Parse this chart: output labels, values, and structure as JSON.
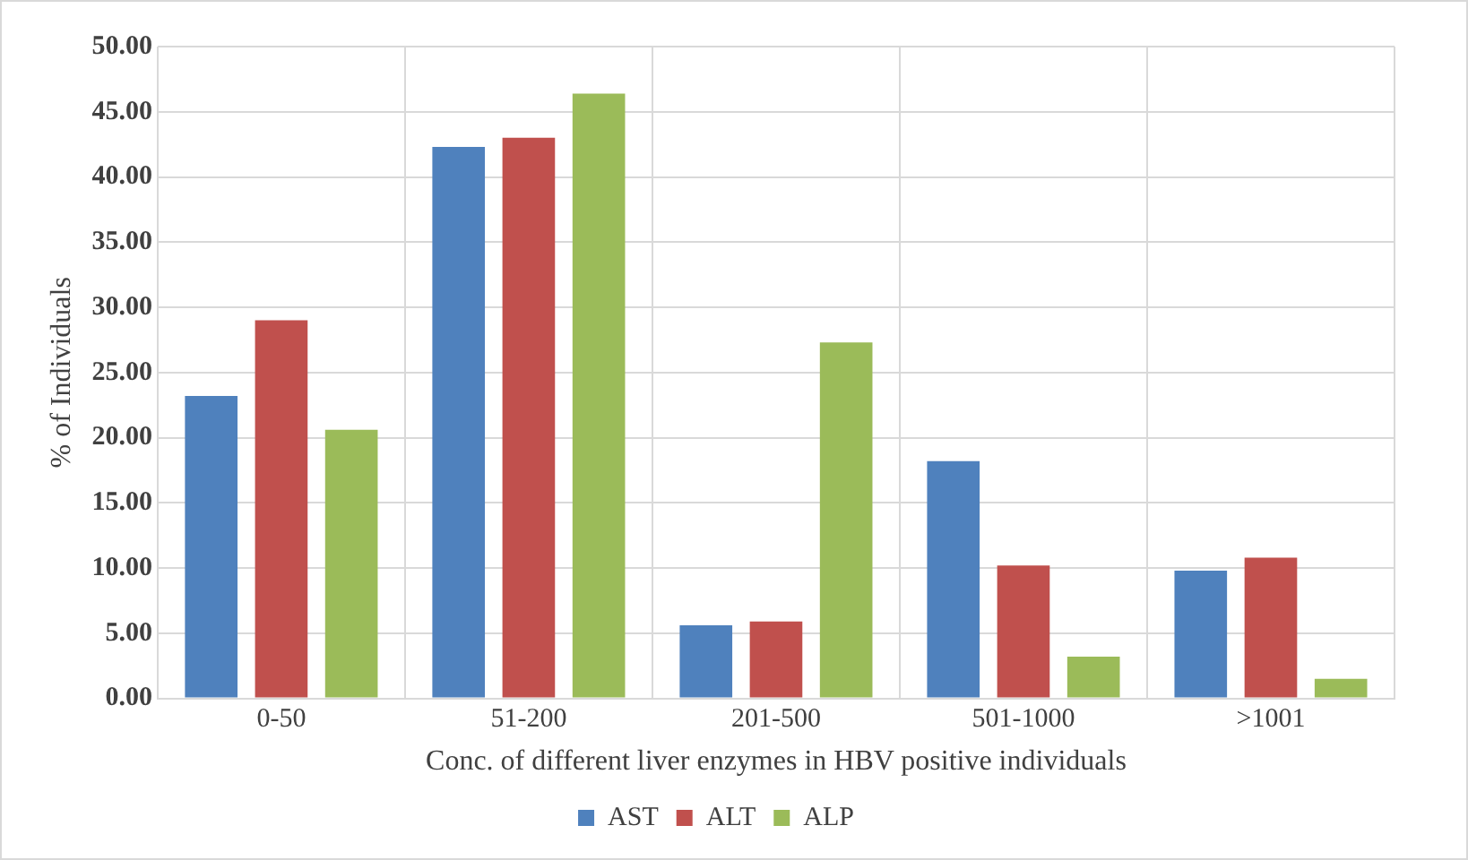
{
  "chart_data": {
    "type": "bar",
    "xlabel": "Conc. of different liver enzymes in HBV positive individuals",
    "ylabel": "% of Individuals",
    "categories": [
      "0-50",
      "51-200",
      "201-500",
      "501-1000",
      ">1001"
    ],
    "series": [
      {
        "name": "AST",
        "color": "#4f81bd",
        "values": [
          23.2,
          42.3,
          5.6,
          18.2,
          9.8
        ]
      },
      {
        "name": "ALT",
        "color": "#c0504d",
        "values": [
          29.0,
          43.0,
          5.9,
          10.2,
          10.8
        ]
      },
      {
        "name": "ALP",
        "color": "#9bbb59",
        "values": [
          20.6,
          46.4,
          27.3,
          3.2,
          1.5
        ]
      }
    ],
    "ylim": [
      0,
      50
    ],
    "yticks": [
      {
        "value": 0,
        "label": "0.00"
      },
      {
        "value": 5,
        "label": "5.00"
      },
      {
        "value": 10,
        "label": "10.00"
      },
      {
        "value": 15,
        "label": "15.00"
      },
      {
        "value": 20,
        "label": "20.00"
      },
      {
        "value": 25,
        "label": "25.00"
      },
      {
        "value": 30,
        "label": "30.00"
      },
      {
        "value": 35,
        "label": "35.00"
      },
      {
        "value": 40,
        "label": "40.00"
      },
      {
        "value": 45,
        "label": "45.00"
      },
      {
        "value": 50,
        "label": "50.00"
      }
    ],
    "grid": true,
    "legend": "bottom"
  }
}
